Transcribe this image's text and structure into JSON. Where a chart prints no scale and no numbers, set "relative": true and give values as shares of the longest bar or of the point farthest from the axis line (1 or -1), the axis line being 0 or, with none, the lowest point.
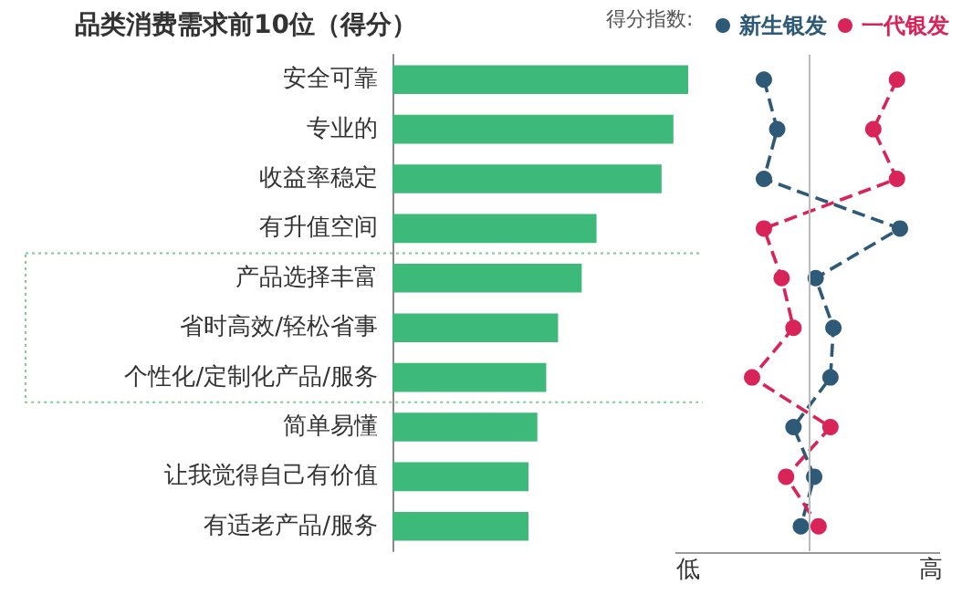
{
  "chart_data": [
    {
      "type": "bar",
      "orientation": "horizontal",
      "relative": true,
      "title": "品类消费需求前10位（得分）",
      "categories": [
        "安全可靠",
        "专业的",
        "收益率稳定",
        "有升值空间",
        "产品选择丰富",
        "省时高效/轻松省事",
        "个性化/定制化产品/服务",
        "简单易懂",
        "让我觉得自己有价值",
        "有适老产品/服务"
      ],
      "values": [
        1,
        0.95,
        0.91,
        0.69,
        0.64,
        0.56,
        0.52,
        0.49,
        0.46,
        0.46
      ],
      "color": "#3dba7a",
      "grid": false
    },
    {
      "type": "line",
      "orientation": "horizontal",
      "categories": [
        null,
        null,
        null,
        null,
        null,
        null,
        null,
        null,
        null,
        null
      ],
      "legend_title": "得分指数:",
      "legend": "top right",
      "marker": "circle",
      "line_style": "dashed",
      "grid": false,
      "relative": true,
      "annotations": [
        "低",
        "高"
      ],
      "ref_lines": [
        {
          "axis": "x",
          "value": 0.38,
          "color": "#bbbbbb"
        }
      ],
      "series": [
        {
          "name": "新生银发",
          "color": "#2e5a78",
          "values": [
            0.08,
            0.17,
            0.08,
            1,
            0.43,
            0.55,
            0.53,
            0.28,
            0.42,
            0.33
          ]
        },
        {
          "name": "一代银发",
          "color": "#d9245a",
          "values": [
            0.98,
            0.82,
            0.98,
            0.08,
            0.2,
            0.28,
            0,
            0.53,
            0.23,
            0.45
          ]
        }
      ]
    }
  ]
}
